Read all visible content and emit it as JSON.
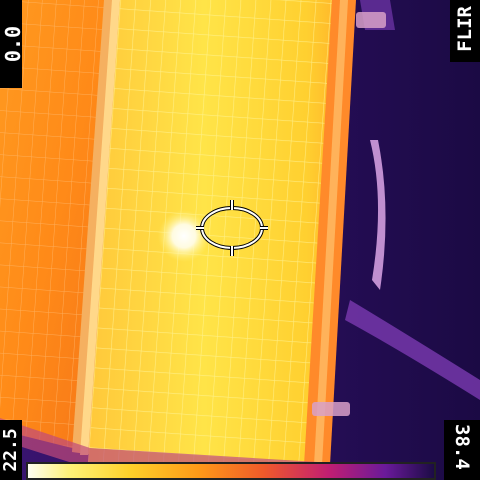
{
  "overlay": {
    "brand": "FLIR",
    "top_left_value": "0.0",
    "scale_min_label": "22.5",
    "scale_max_label": "38.4"
  },
  "colors": {
    "background": "#1a0a3a",
    "panel_hot": "#ffe03a",
    "panel_warm": "#ff9a20",
    "frame": "#ffd070",
    "hotspot": "#ffffff",
    "cold": "#2a1060"
  },
  "icons": {
    "measurement": "spot-ellipse-icon"
  }
}
